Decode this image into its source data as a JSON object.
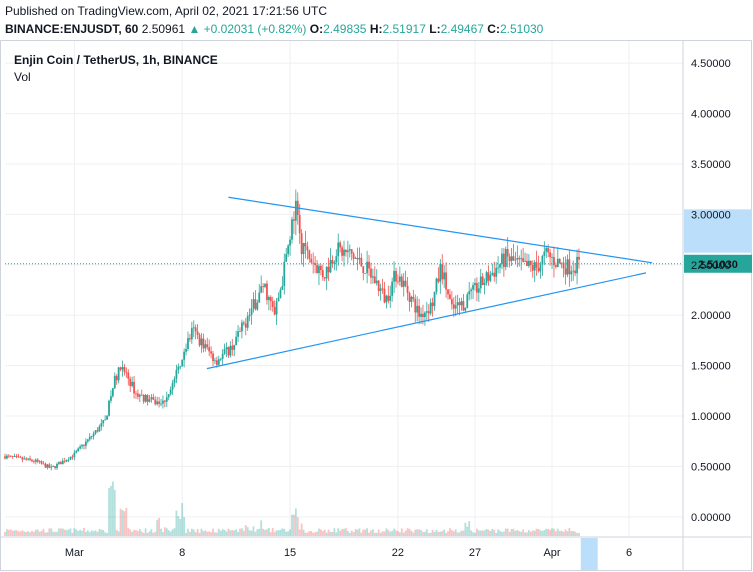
{
  "published": "Published on TradingView.com, April 02, 2021 17:21:56 UTC",
  "ticker_line": {
    "symbol": "BINANCE:ENJUSDT, 60",
    "last": "2.50961",
    "change": "▲ +0.02031 (+0.82%)",
    "o_label": "O:",
    "o": "2.49835",
    "h_label": "H:",
    "h": "2.51917",
    "l_label": "L:",
    "l": "2.49467",
    "c_label": "C:",
    "c": "2.51030"
  },
  "legend": {
    "title": "Enjin Coin / TetherUS, 1h, BINANCE",
    "vol": "Vol"
  },
  "colors": {
    "up": "#26a69a",
    "down": "#ef5350",
    "trendline": "#2196f3",
    "price_label": "#26a69a",
    "axis_highlight": "#bbdefb"
  },
  "chart_data": {
    "type": "candlestick",
    "title": "Enjin Coin / TetherUS, 1h, BINANCE",
    "ylim": [
      -0.2,
      4.72
    ],
    "y_ticks": [
      "4.50000",
      "4.00000",
      "3.50000",
      "3.00000",
      "2.50000",
      "2.00000",
      "1.50000",
      "1.00000",
      "0.50000",
      "0.00000"
    ],
    "y_tick_values": [
      4.5,
      4.0,
      3.5,
      3.0,
      2.5,
      2.0,
      1.5,
      1.0,
      0.5,
      0.0
    ],
    "x_range_days": [
      -3.5,
      40.5
    ],
    "x_ticks": [
      {
        "label": "Mar",
        "day": 1
      },
      {
        "label": "8",
        "day": 8
      },
      {
        "label": "15",
        "day": 15
      },
      {
        "label": "22",
        "day": 22
      },
      {
        "label": "27",
        "day": 27
      },
      {
        "label": "Apr",
        "day": 32
      },
      {
        "label": "6",
        "day": 37
      }
    ],
    "last_price": 2.5103,
    "last_price_label": "2.51030",
    "close_path": [
      [
        -3.5,
        0.6
      ],
      [
        -1.5,
        0.55
      ],
      [
        -0.5,
        0.48
      ],
      [
        1,
        0.62
      ],
      [
        2,
        0.78
      ],
      [
        3,
        0.95
      ],
      [
        3.6,
        1.35
      ],
      [
        4.1,
        1.5
      ],
      [
        5,
        1.22
      ],
      [
        6,
        1.15
      ],
      [
        6.7,
        1.12
      ],
      [
        7.5,
        1.35
      ],
      [
        8.1,
        1.65
      ],
      [
        8.7,
        1.85
      ],
      [
        9.3,
        1.72
      ],
      [
        10.2,
        1.55
      ],
      [
        11.2,
        1.68
      ],
      [
        12,
        1.9
      ],
      [
        12.5,
        2.05
      ],
      [
        13.3,
        2.3
      ],
      [
        14,
        2.0
      ],
      [
        14.5,
        2.35
      ],
      [
        15,
        2.8
      ],
      [
        15.4,
        3.05
      ],
      [
        15.8,
        2.65
      ],
      [
        16.4,
        2.55
      ],
      [
        17.2,
        2.4
      ],
      [
        18,
        2.65
      ],
      [
        19,
        2.6
      ],
      [
        20,
        2.45
      ],
      [
        20.7,
        2.3
      ],
      [
        21.2,
        2.15
      ],
      [
        21.9,
        2.42
      ],
      [
        22.6,
        2.25
      ],
      [
        23.4,
        2.0
      ],
      [
        24.2,
        2.1
      ],
      [
        24.8,
        2.48
      ],
      [
        25.5,
        2.05
      ],
      [
        26.3,
        2.12
      ],
      [
        27.2,
        2.28
      ],
      [
        28,
        2.4
      ],
      [
        29,
        2.57
      ],
      [
        30.2,
        2.48
      ],
      [
        31,
        2.47
      ],
      [
        31.6,
        2.6
      ],
      [
        32.3,
        2.53
      ],
      [
        33,
        2.48
      ],
      [
        33.8,
        2.51
      ]
    ],
    "volume_spikes": [
      [
        3.4,
        0.55
      ],
      [
        4.2,
        0.3
      ],
      [
        7.8,
        0.25
      ],
      [
        15.3,
        0.28
      ],
      [
        26.5,
        0.15
      ]
    ],
    "trendlines": [
      {
        "from": [
          11.0,
          3.17
        ],
        "to": [
          38.5,
          2.52
        ]
      },
      {
        "from": [
          9.6,
          1.47
        ],
        "to": [
          38.1,
          2.42
        ]
      }
    ]
  }
}
